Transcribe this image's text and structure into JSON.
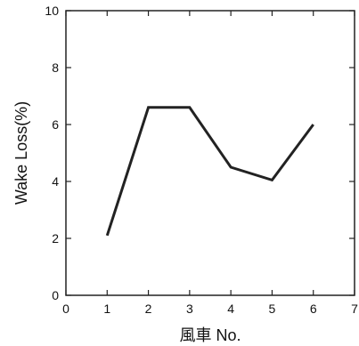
{
  "chart_data": {
    "type": "line",
    "x": [
      1,
      2,
      3,
      4,
      5,
      6
    ],
    "series": [
      {
        "values": [
          2.1,
          6.6,
          6.6,
          4.5,
          4.05,
          6.0
        ]
      }
    ],
    "xlabel": "風車 No.",
    "ylabel": "Wake Loss(%)",
    "xlim": [
      0,
      7
    ],
    "ylim": [
      0,
      10
    ],
    "xticks": [
      0,
      1,
      2,
      3,
      4,
      5,
      6,
      7
    ],
    "yticks": [
      0,
      2,
      4,
      6,
      8,
      10
    ],
    "grid": false,
    "colors": {
      "line": "#222222",
      "axes": "#222222"
    }
  }
}
